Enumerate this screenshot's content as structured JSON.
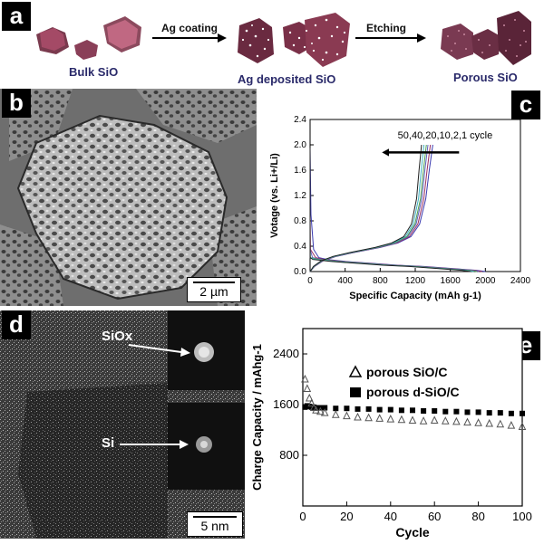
{
  "panels": {
    "a": {
      "letter": "a",
      "bulk_label": "Bulk SiO",
      "ag_coating_label": "Ag coating",
      "ag_deposited_label": "Ag deposited SiO",
      "etching_label": "Etching",
      "porous_label": "Porous SiO",
      "particle_color": "#b8607a"
    },
    "b": {
      "letter": "b",
      "scale_bar": "2 µm"
    },
    "c": {
      "letter": "c"
    },
    "d": {
      "letter": "d",
      "label_siox": "SiOx",
      "label_si": "Si",
      "scale_bar": "5 nm"
    },
    "e": {
      "letter": "e"
    }
  },
  "chart_data": [
    {
      "id": "c",
      "type": "line",
      "xlabel": "Specific Capacity (mAh g-1)",
      "ylabel": "Votage (vs. Li+/Li)",
      "annotation": "50,40,20,10,2,1 cycle",
      "xlim": [
        0,
        2400
      ],
      "ylim": [
        0,
        2.4
      ],
      "xticks": [
        0,
        400,
        800,
        1200,
        1600,
        2000,
        2400
      ],
      "yticks": [
        0.0,
        0.4,
        0.8,
        1.2,
        1.6,
        2.0,
        2.4
      ],
      "xtick_labels": [
        "0",
        "400",
        "800",
        "1200",
        "1600",
        "2000",
        "2400"
      ],
      "ytick_labels": [
        "0.0",
        "0.4",
        "0.8",
        "1.2",
        "1.6",
        "2.0",
        "2.4"
      ],
      "colors": [
        "#3a3ab0",
        "#9a3060",
        "#6060c0",
        "#50a050",
        "#40b0c0",
        "#202020"
      ],
      "discharge_x": [
        0,
        10,
        40,
        100,
        200,
        400,
        700,
        1000,
        1300,
        1600,
        1900,
        2000
      ],
      "discharge_y": [
        1.95,
        0.9,
        0.35,
        0.22,
        0.19,
        0.16,
        0.13,
        0.1,
        0.08,
        0.05,
        0.02,
        0.0
      ],
      "charge_x": [
        0,
        50,
        150,
        300,
        500,
        800,
        1000,
        1150,
        1250,
        1320,
        1360,
        1400
      ],
      "charge_y": [
        0.0,
        0.08,
        0.17,
        0.24,
        0.3,
        0.38,
        0.45,
        0.55,
        0.75,
        1.15,
        1.6,
        2.0
      ],
      "cycle_offsets": [
        0,
        30,
        60,
        80,
        110,
        140
      ]
    },
    {
      "id": "e",
      "type": "scatter",
      "xlabel": "Cycle",
      "ylabel": "Charge Capacity / mAhg-1",
      "xlim": [
        0,
        100
      ],
      "ylim": [
        0,
        2800
      ],
      "xticks": [
        0,
        20,
        40,
        60,
        80,
        100
      ],
      "yticks": [
        800,
        1600,
        2400
      ],
      "xtick_labels": [
        "0",
        "20",
        "40",
        "60",
        "80",
        "100"
      ],
      "ytick_labels": [
        "800",
        "1600",
        "2400"
      ],
      "series": [
        {
          "name": "porous SiO/C",
          "marker": "triangle-open",
          "x": [
            1,
            2,
            3,
            4,
            5,
            6,
            8,
            10,
            15,
            20,
            25,
            30,
            35,
            40,
            45,
            50,
            55,
            60,
            65,
            70,
            75,
            80,
            85,
            90,
            95,
            100
          ],
          "y": [
            2000,
            1850,
            1700,
            1620,
            1550,
            1510,
            1490,
            1470,
            1440,
            1420,
            1400,
            1390,
            1380,
            1370,
            1360,
            1350,
            1340,
            1350,
            1340,
            1330,
            1320,
            1310,
            1300,
            1290,
            1270,
            1250
          ]
        },
        {
          "name": "porous d-SiO/C",
          "marker": "square-filled",
          "x": [
            1,
            2,
            3,
            4,
            5,
            6,
            8,
            10,
            15,
            20,
            25,
            30,
            35,
            40,
            45,
            50,
            55,
            60,
            65,
            70,
            75,
            80,
            85,
            90,
            95,
            100
          ],
          "y": [
            1560,
            1580,
            1570,
            1560,
            1560,
            1550,
            1550,
            1550,
            1540,
            1540,
            1530,
            1530,
            1520,
            1520,
            1510,
            1510,
            1500,
            1500,
            1490,
            1490,
            1480,
            1480,
            1470,
            1470,
            1460,
            1460
          ]
        }
      ]
    }
  ]
}
